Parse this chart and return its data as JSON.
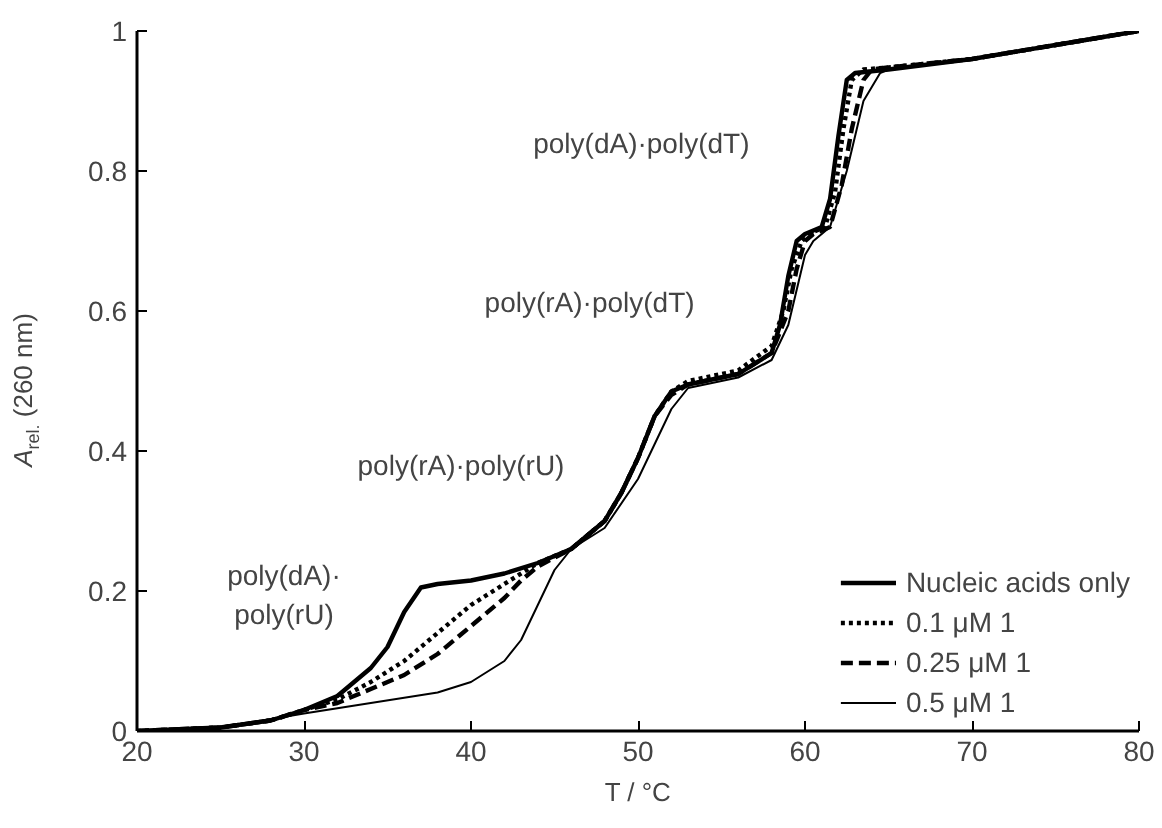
{
  "chart_data": {
    "type": "line",
    "xlabel": "T / °C",
    "ylabel": "A$_{rel.}$ (260 nm)",
    "xlim": [
      20,
      80
    ],
    "ylim": [
      0,
      1
    ],
    "xticks": [
      20,
      30,
      40,
      50,
      60,
      70,
      80
    ],
    "yticks": [
      0,
      0.2,
      0.4,
      0.6,
      0.8,
      1
    ],
    "grid": false,
    "legend": "bottom right",
    "marker": "none",
    "series": [
      {
        "name": "Nucleic acids only",
        "color": "#000000",
        "line_style": "solid",
        "x": [
          20,
          25,
          28,
          30,
          32,
          34,
          35,
          36,
          37,
          38,
          40,
          42,
          44,
          46,
          48,
          49,
          50,
          51,
          52,
          53,
          54,
          56,
          58,
          58.5,
          59,
          59.5,
          60,
          61,
          61.5,
          62,
          62.5,
          63,
          65,
          70,
          75,
          80
        ],
        "values": [
          0,
          0.005,
          0.015,
          0.03,
          0.05,
          0.09,
          0.12,
          0.17,
          0.205,
          0.21,
          0.215,
          0.225,
          0.24,
          0.26,
          0.3,
          0.34,
          0.39,
          0.45,
          0.485,
          0.495,
          0.5,
          0.51,
          0.54,
          0.58,
          0.65,
          0.7,
          0.71,
          0.72,
          0.76,
          0.85,
          0.93,
          0.94,
          0.945,
          0.96,
          0.98,
          1.0
        ]
      },
      {
        "name": "0.1 μM 1",
        "color": "#000000",
        "line_style": "dotted",
        "x": [
          20,
          25,
          28,
          30,
          32,
          34,
          36,
          38,
          40,
          42,
          44,
          46,
          48,
          49,
          50,
          51,
          52,
          53,
          54,
          56,
          58,
          58.7,
          59.2,
          59.8,
          60.2,
          61.2,
          61.8,
          62.3,
          62.8,
          63.5,
          65,
          70,
          75,
          80
        ],
        "values": [
          0,
          0.005,
          0.015,
          0.03,
          0.045,
          0.07,
          0.1,
          0.14,
          0.18,
          0.21,
          0.24,
          0.26,
          0.3,
          0.34,
          0.39,
          0.45,
          0.485,
          0.5,
          0.505,
          0.515,
          0.55,
          0.6,
          0.66,
          0.7,
          0.71,
          0.72,
          0.77,
          0.86,
          0.93,
          0.945,
          0.948,
          0.96,
          0.98,
          1.0
        ]
      },
      {
        "name": "0.25 μM 1",
        "color": "#000000",
        "line_style": "dashed",
        "x": [
          20,
          25,
          28,
          30,
          32,
          34,
          36,
          38,
          40,
          42,
          43,
          44,
          46,
          48,
          49,
          50,
          51,
          52,
          53,
          54,
          56,
          58,
          59,
          59.5,
          60,
          60.5,
          61.5,
          62.2,
          62.8,
          63.5,
          64,
          65,
          70,
          75,
          80
        ],
        "values": [
          0,
          0.005,
          0.015,
          0.03,
          0.04,
          0.06,
          0.08,
          0.11,
          0.15,
          0.19,
          0.215,
          0.235,
          0.26,
          0.3,
          0.34,
          0.39,
          0.45,
          0.48,
          0.495,
          0.5,
          0.51,
          0.54,
          0.6,
          0.66,
          0.7,
          0.71,
          0.72,
          0.78,
          0.86,
          0.93,
          0.945,
          0.948,
          0.96,
          0.98,
          1.0
        ]
      },
      {
        "name": "0.5 μM 1",
        "color": "#000000",
        "line_style": "solid",
        "x": [
          20,
          25,
          30,
          34,
          38,
          40,
          42,
          43,
          44,
          45,
          46,
          48,
          50,
          51,
          52,
          53,
          56,
          58,
          59,
          60,
          60.5,
          61.5,
          62.5,
          63.5,
          64.5,
          65,
          70,
          75,
          80
        ],
        "values": [
          0,
          0.005,
          0.025,
          0.04,
          0.055,
          0.07,
          0.1,
          0.13,
          0.18,
          0.23,
          0.26,
          0.29,
          0.36,
          0.41,
          0.46,
          0.49,
          0.505,
          0.53,
          0.58,
          0.68,
          0.7,
          0.72,
          0.8,
          0.9,
          0.94,
          0.945,
          0.96,
          0.98,
          1.0
        ]
      }
    ],
    "annotations": [
      "poly(dA)·poly(dT)",
      "poly(rA)·poly(dT)",
      "poly(rA)·poly(rU)",
      "poly(dA)·\npoly(rU)"
    ]
  }
}
